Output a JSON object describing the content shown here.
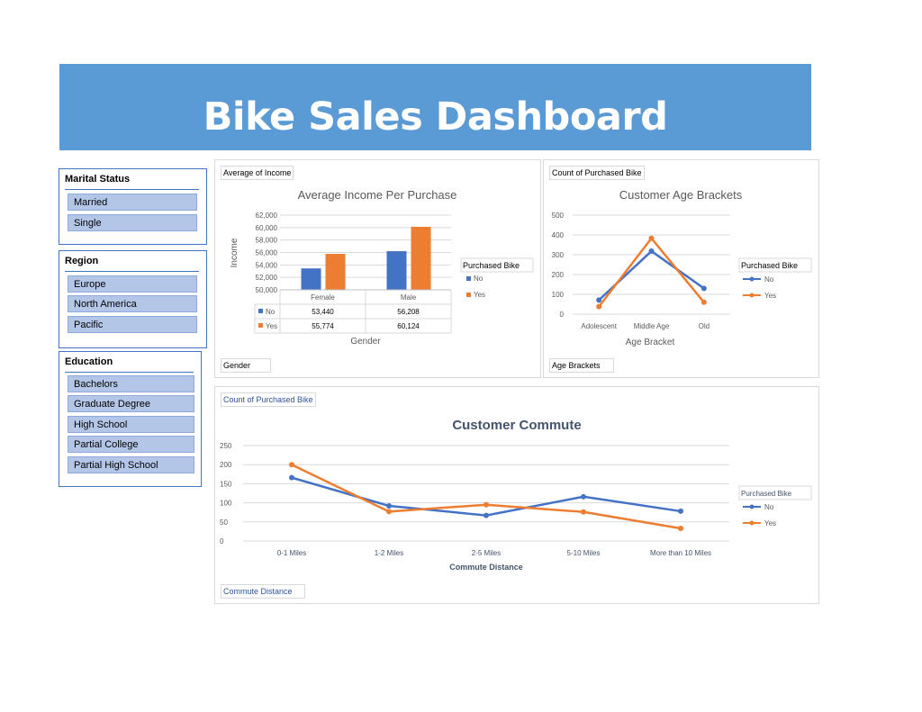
{
  "header": {
    "title": "Bike Sales Dashboard"
  },
  "colors": {
    "banner": "#5b9bd5",
    "series_no": "#4472c4",
    "series_yes": "#ed7d31",
    "slicer_button": "#b4c6e7"
  },
  "slicers": {
    "marital": {
      "title": "Marital Status",
      "items": [
        "Married",
        "Single"
      ]
    },
    "region": {
      "title": "Region",
      "items": [
        "Europe",
        "North America",
        "Pacific"
      ]
    },
    "education": {
      "title": "Education",
      "items": [
        "Bachelors",
        "Graduate Degree",
        "High School",
        "Partial College",
        "Partial High School"
      ]
    }
  },
  "panels": {
    "income": {
      "value_button": "Average of Income",
      "axis_button": "Gender"
    },
    "age": {
      "value_button": "Count of Purchased Bike",
      "axis_button": "Age Brackets"
    },
    "commute": {
      "value_button": "Count of Purchased Bike",
      "axis_button": "Commute Distance"
    }
  },
  "chart_data": [
    {
      "type": "bar",
      "title": "Average Income Per Purchase",
      "xlabel": "Gender",
      "ylabel": "Income",
      "ylim": [
        50000,
        62000
      ],
      "yticks": [
        "62,000",
        "60,000",
        "58,000",
        "56,000",
        "54,000",
        "52,000",
        "50,000"
      ],
      "categories": [
        "Female",
        "Male"
      ],
      "series": [
        {
          "name": "No",
          "values": [
            53440,
            56208
          ],
          "labels": [
            "53,440",
            "56,208"
          ]
        },
        {
          "name": "Yes",
          "values": [
            55774,
            60124
          ],
          "labels": [
            "55,774",
            "60,124"
          ]
        }
      ],
      "legend_title": "Purchased Bike",
      "legend_position": "right",
      "grid": true
    },
    {
      "type": "line",
      "title": "Customer Age Brackets",
      "xlabel": "Age Bracket",
      "ylim": [
        0,
        500
      ],
      "yticks": [
        "500",
        "400",
        "300",
        "200",
        "100",
        "0"
      ],
      "categories": [
        "Adolescent",
        "Middle Age",
        "Old"
      ],
      "series": [
        {
          "name": "No",
          "values": [
            71,
            318,
            130
          ]
        },
        {
          "name": "Yes",
          "values": [
            38,
            383,
            60
          ]
        }
      ],
      "legend_title": "Purchased Bike",
      "legend_position": "right",
      "grid": true
    },
    {
      "type": "line",
      "title": "Customer Commute",
      "xlabel": "Commute Distance",
      "ylim": [
        0,
        250
      ],
      "yticks": [
        "250",
        "200",
        "150",
        "100",
        "50",
        "0"
      ],
      "categories": [
        "0-1 Miles",
        "1-2 Miles",
        "2-5 Miles",
        "5-10 Miles",
        "More than 10 Miles"
      ],
      "series": [
        {
          "name": "No",
          "values": [
            166,
            92,
            67,
            116,
            78
          ]
        },
        {
          "name": "Yes",
          "values": [
            200,
            77,
            95,
            76,
            33
          ]
        }
      ],
      "legend_title": "Purchased Bike",
      "legend_position": "right",
      "grid": true
    }
  ]
}
